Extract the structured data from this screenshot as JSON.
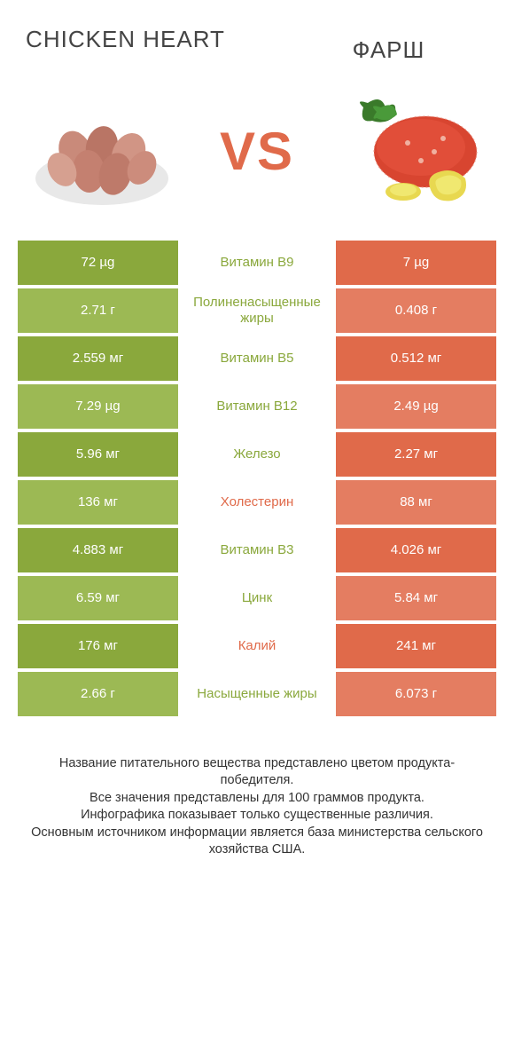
{
  "colors": {
    "green": "#8aa83c",
    "green_alt": "#9cb954",
    "orange": "#e06a4a",
    "orange_alt": "#e47d61",
    "orange_text": "#e06a4a",
    "green_text": "#8aa83c"
  },
  "titles": {
    "left": "CHICKEN HEART",
    "right": "ФАРШ"
  },
  "vs": "VS",
  "rows": [
    {
      "left": "72 µg",
      "mid": "Витамин B9",
      "right": "7 µg",
      "winner": "left",
      "shade": 0
    },
    {
      "left": "2.71 г",
      "mid": "Полиненасыщенные жиры",
      "right": "0.408 г",
      "winner": "left",
      "shade": 1
    },
    {
      "left": "2.559 мг",
      "mid": "Витамин B5",
      "right": "0.512 мг",
      "winner": "left",
      "shade": 0
    },
    {
      "left": "7.29 µg",
      "mid": "Витамин B12",
      "right": "2.49 µg",
      "winner": "left",
      "shade": 1
    },
    {
      "left": "5.96 мг",
      "mid": "Железо",
      "right": "2.27 мг",
      "winner": "left",
      "shade": 0
    },
    {
      "left": "136 мг",
      "mid": "Холестерин",
      "right": "88 мг",
      "winner": "right",
      "shade": 1
    },
    {
      "left": "4.883 мг",
      "mid": "Витамин B3",
      "right": "4.026 мг",
      "winner": "left",
      "shade": 0
    },
    {
      "left": "6.59 мг",
      "mid": "Цинк",
      "right": "5.84 мг",
      "winner": "left",
      "shade": 1
    },
    {
      "left": "176 мг",
      "mid": "Калий",
      "right": "241 мг",
      "winner": "right",
      "shade": 0
    },
    {
      "left": "2.66 г",
      "mid": "Насыщенные жиры",
      "right": "6.073 г",
      "winner": "left",
      "shade": 1
    }
  ],
  "footer": "Название питательного вещества представлено цветом продукта-победителя.\nВсе значения представлены для 100 граммов продукта.\nИнфографика показывает только существенные различия.\nОсновным источником информации является база министерства сельского хозяйства США."
}
